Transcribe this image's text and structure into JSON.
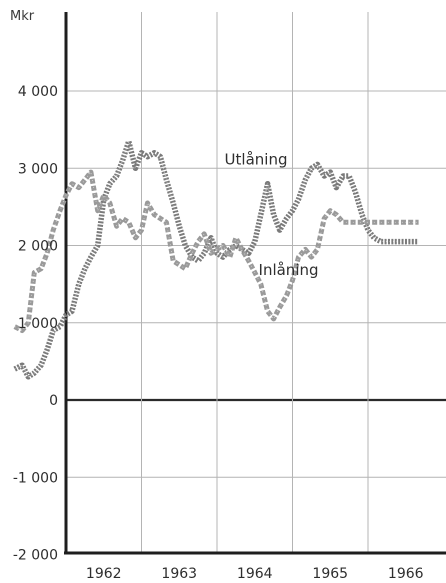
{
  "chart_data": {
    "type": "line",
    "title": "",
    "xlabel": "",
    "ylabel": "Mkr",
    "ylim": [
      -2000,
      5000
    ],
    "y_ticks": [
      {
        "value": 4000,
        "label": "4 000"
      },
      {
        "value": 3000,
        "label": "3 000"
      },
      {
        "value": 2000,
        "label": "2 000"
      },
      {
        "value": 1000,
        "label": "1 000"
      },
      {
        "value": 0,
        "label": "0"
      },
      {
        "value": -1000,
        "label": "-1 000"
      },
      {
        "value": -2000,
        "label": "-2 000"
      }
    ],
    "x_range": [
      1961.3,
      1966.7
    ],
    "x_ticks": [
      {
        "value": 1962,
        "label": "1962"
      },
      {
        "value": 1963,
        "label": "1963"
      },
      {
        "value": 1964,
        "label": "1964"
      },
      {
        "value": 1965,
        "label": "1965"
      },
      {
        "value": 1966,
        "label": "1966"
      }
    ],
    "grid": true,
    "colors": {
      "ink": "#3c3c3c",
      "axis": "#1e1e1e",
      "grid": "#b4b4b4",
      "utlaning": "#7a7a7a",
      "inlaning": "#9a9a9a"
    },
    "series": [
      {
        "name": "Utlåning",
        "x": [
          1961.32,
          1961.42,
          1961.5,
          1961.58,
          1961.67,
          1961.75,
          1961.83,
          1961.92,
          1962.0,
          1962.08,
          1962.17,
          1962.25,
          1962.33,
          1962.42,
          1962.5,
          1962.58,
          1962.67,
          1962.75,
          1962.83,
          1962.92,
          1963.0,
          1963.08,
          1963.17,
          1963.25,
          1963.33,
          1963.42,
          1963.5,
          1963.58,
          1963.67,
          1963.75,
          1963.83,
          1963.92,
          1964.0,
          1964.08,
          1964.17,
          1964.25,
          1964.33,
          1964.42,
          1964.5,
          1964.58,
          1964.67,
          1964.75,
          1964.83,
          1964.92,
          1965.0,
          1965.08,
          1965.17,
          1965.25,
          1965.33,
          1965.42,
          1965.5,
          1965.58,
          1965.67,
          1965.75,
          1965.83,
          1965.92,
          1966.0,
          1966.08,
          1966.17,
          1966.25,
          1966.33,
          1966.42,
          1966.5,
          1966.58,
          1966.67
        ],
        "values": [
          400,
          450,
          300,
          350,
          450,
          650,
          900,
          950,
          1100,
          1150,
          1500,
          1700,
          1850,
          2000,
          2600,
          2800,
          2900,
          3100,
          3350,
          3000,
          3200,
          3150,
          3200,
          3150,
          2850,
          2550,
          2250,
          2000,
          1850,
          1800,
          1900,
          2100,
          1900,
          1850,
          1950,
          2000,
          1950,
          1900,
          2050,
          2400,
          2800,
          2400,
          2200,
          2350,
          2450,
          2600,
          2850,
          3000,
          3050,
          2900,
          2950,
          2750,
          2900,
          2900,
          2700,
          2400,
          2200,
          2100,
          2050,
          2050,
          2050,
          2050,
          2050,
          2050,
          2050
        ]
      },
      {
        "name": "Inlåning",
        "x": [
          1961.32,
          1961.42,
          1961.5,
          1961.58,
          1961.67,
          1961.75,
          1961.83,
          1961.92,
          1962.0,
          1962.08,
          1962.17,
          1962.25,
          1962.33,
          1962.42,
          1962.5,
          1962.58,
          1962.67,
          1962.75,
          1962.83,
          1962.92,
          1963.0,
          1963.08,
          1963.17,
          1963.25,
          1963.33,
          1963.42,
          1963.5,
          1963.58,
          1963.67,
          1963.75,
          1963.83,
          1963.92,
          1964.0,
          1964.08,
          1964.17,
          1964.25,
          1964.33,
          1964.42,
          1964.5,
          1964.58,
          1964.67,
          1964.75,
          1964.83,
          1964.92,
          1965.0,
          1965.08,
          1965.17,
          1965.25,
          1965.33,
          1965.42,
          1965.5,
          1965.58,
          1965.67,
          1965.75,
          1965.83,
          1965.92,
          1966.0,
          1966.08,
          1966.17,
          1966.25,
          1966.33,
          1966.42,
          1966.5,
          1966.58,
          1966.67
        ],
        "values": [
          950,
          900,
          1000,
          1650,
          1700,
          1900,
          2200,
          2450,
          2650,
          2800,
          2750,
          2850,
          2950,
          2450,
          2650,
          2550,
          2250,
          2350,
          2300,
          2100,
          2200,
          2550,
          2400,
          2350,
          2300,
          1800,
          1750,
          1700,
          1900,
          2050,
          2150,
          1900,
          1950,
          2000,
          1850,
          2100,
          1950,
          1800,
          1650,
          1500,
          1150,
          1050,
          1200,
          1350,
          1550,
          1850,
          1950,
          1850,
          1950,
          2350,
          2450,
          2400,
          2300,
          2300,
          2300,
          2300,
          2300,
          2300,
          2300,
          2300,
          2300,
          2300,
          2300,
          2300,
          2300
        ]
      }
    ],
    "annotations": [
      {
        "series": "Utlåning",
        "text": "Utlåning",
        "x": 1964.1,
        "y": 3050
      },
      {
        "series": "Inlåning",
        "text": "Inlåning",
        "x": 1964.55,
        "y": 1620
      }
    ]
  }
}
